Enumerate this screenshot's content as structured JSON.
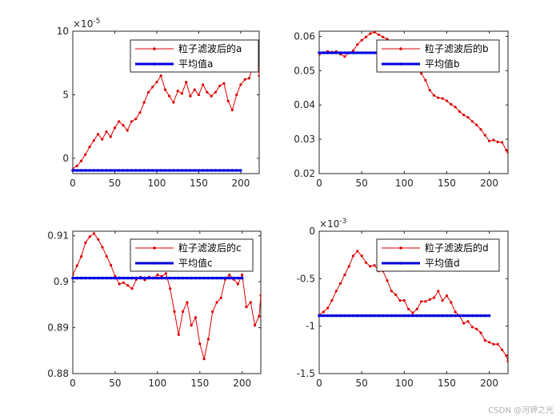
{
  "watermark": "CSDN @河钾之光",
  "colors": {
    "filtered": "#dd0000",
    "mean": "#0000e0",
    "axis": "#262626"
  },
  "chart_data": [
    {
      "type": "line",
      "panel": "a",
      "xlim": [
        0,
        222
      ],
      "ylim": [
        -1.2e-05,
        0.0001
      ],
      "x_ticks": [
        0,
        50,
        100,
        150,
        200
      ],
      "y_ticks": [
        0,
        5e-05,
        0.0001
      ],
      "y_tick_labels": [
        "0",
        "5",
        "10"
      ],
      "exponent_base": "×10",
      "exponent": "-5",
      "legend": [
        "粒子滤波后的a",
        "平均值a"
      ],
      "series": [
        {
          "name": "粒子滤波后的a",
          "x": [
            0,
            5,
            10,
            15,
            20,
            25,
            30,
            35,
            40,
            45,
            50,
            55,
            60,
            65,
            70,
            75,
            80,
            85,
            90,
            95,
            100,
            105,
            110,
            115,
            120,
            125,
            130,
            135,
            140,
            145,
            150,
            155,
            160,
            165,
            170,
            175,
            180,
            185,
            190,
            195,
            200,
            205,
            210,
            215,
            220,
            222
          ],
          "y": [
            -8e-06,
            -6e-06,
            -2e-06,
            3e-06,
            9e-06,
            1.4e-05,
            1.9e-05,
            1.5e-05,
            2.1e-05,
            1.7e-05,
            2.4e-05,
            2.9e-05,
            2.6e-05,
            2.2e-05,
            2.9e-05,
            3.1e-05,
            3.6e-05,
            4.4e-05,
            5.2e-05,
            5.6e-05,
            6e-05,
            6.5e-05,
            5.4e-05,
            4.9e-05,
            4.4e-05,
            5.3e-05,
            5.1e-05,
            6e-05,
            4.9e-05,
            5.4e-05,
            5e-05,
            5.8e-05,
            5.2e-05,
            4.9e-05,
            5.2e-05,
            5.7e-05,
            5.9e-05,
            4.5e-05,
            3.8e-05,
            5e-05,
            5.8e-05,
            6.2e-05,
            6.3e-05,
            7.3e-05,
            8.5e-05,
            6.5e-05
          ]
        },
        {
          "name": "平均值a",
          "x": [
            0,
            200
          ],
          "y": [
            -9.5e-06,
            -9.5e-06
          ]
        }
      ]
    },
    {
      "type": "line",
      "panel": "b",
      "xlim": [
        0,
        222
      ],
      "ylim": [
        0.02,
        0.0615
      ],
      "x_ticks": [
        0,
        50,
        100,
        150,
        200
      ],
      "y_ticks": [
        0.02,
        0.03,
        0.04,
        0.05,
        0.06
      ],
      "y_tick_labels": [
        "0.02",
        "0.03",
        "0.04",
        "0.05",
        "0.06"
      ],
      "legend": [
        "粒子滤波后的b",
        "平均值b"
      ],
      "series": [
        {
          "name": "粒子滤波后的b",
          "x": [
            0,
            5,
            10,
            15,
            20,
            25,
            30,
            35,
            40,
            45,
            50,
            55,
            60,
            65,
            70,
            75,
            80,
            85,
            90,
            95,
            100,
            105,
            110,
            115,
            120,
            125,
            130,
            135,
            140,
            145,
            150,
            155,
            160,
            165,
            170,
            175,
            180,
            185,
            190,
            195,
            200,
            205,
            210,
            215,
            220,
            222
          ],
          "y": [
            0.0547,
            0.0553,
            0.0556,
            0.0554,
            0.0556,
            0.0548,
            0.0541,
            0.0552,
            0.0558,
            0.0576,
            0.0589,
            0.0598,
            0.0608,
            0.0612,
            0.0605,
            0.0598,
            0.0592,
            0.0585,
            0.0578,
            0.0572,
            0.0562,
            0.0548,
            0.0531,
            0.0513,
            0.0492,
            0.0472,
            0.0443,
            0.0428,
            0.0421,
            0.0419,
            0.0412,
            0.0402,
            0.0394,
            0.0381,
            0.0371,
            0.0364,
            0.0352,
            0.0342,
            0.0329,
            0.0312,
            0.0295,
            0.0298,
            0.0292,
            0.0291,
            0.0268,
            0.0262
          ]
        },
        {
          "name": "平均值b",
          "x": [
            0,
            200
          ],
          "y": [
            0.0552,
            0.0552
          ]
        }
      ]
    },
    {
      "type": "line",
      "panel": "c",
      "xlim": [
        0,
        222
      ],
      "ylim": [
        0.88,
        0.911
      ],
      "x_ticks": [
        0,
        50,
        100,
        150,
        200
      ],
      "y_ticks": [
        0.88,
        0.89,
        0.9,
        0.91
      ],
      "y_tick_labels": [
        "0.88",
        "0.89",
        "0.9",
        "0.91"
      ],
      "legend": [
        "粒子滤波后的c",
        "平均值c"
      ],
      "series": [
        {
          "name": "粒子滤波后的c",
          "x": [
            0,
            5,
            10,
            15,
            20,
            25,
            30,
            35,
            40,
            45,
            50,
            55,
            60,
            65,
            70,
            75,
            80,
            85,
            90,
            95,
            100,
            105,
            110,
            115,
            120,
            125,
            130,
            135,
            140,
            145,
            150,
            155,
            160,
            165,
            170,
            175,
            180,
            185,
            190,
            195,
            200,
            205,
            210,
            215,
            220,
            222
          ],
          "y": [
            0.9015,
            0.9035,
            0.9055,
            0.9085,
            0.9098,
            0.9105,
            0.9092,
            0.9075,
            0.9055,
            0.9036,
            0.9012,
            0.8995,
            0.8998,
            0.8992,
            0.8985,
            0.9005,
            0.901,
            0.9004,
            0.901,
            0.9008,
            0.9015,
            0.9012,
            0.9018,
            0.8985,
            0.8935,
            0.8885,
            0.8935,
            0.8955,
            0.8905,
            0.8922,
            0.8865,
            0.8832,
            0.8875,
            0.8935,
            0.8955,
            0.8965,
            0.9005,
            0.9015,
            0.9005,
            0.8995,
            0.9015,
            0.8945,
            0.8955,
            0.8905,
            0.8925,
            0.897
          ]
        },
        {
          "name": "平均值c",
          "x": [
            0,
            200
          ],
          "y": [
            0.9008,
            0.9008
          ]
        }
      ]
    },
    {
      "type": "line",
      "panel": "d",
      "xlim": [
        0,
        222
      ],
      "ylim": [
        -0.0015,
        0
      ],
      "x_ticks": [
        0,
        50,
        100,
        150,
        200
      ],
      "y_ticks": [
        0,
        -0.0005,
        -0.001,
        -0.0015
      ],
      "y_tick_labels": [
        "0",
        "-0.5",
        "-1",
        "-1.5"
      ],
      "exponent_base": "×10",
      "exponent": "-3",
      "legend": [
        "粒子滤波后的d",
        "平均值d"
      ],
      "series": [
        {
          "name": "粒子滤波后的d",
          "x": [
            0,
            5,
            10,
            15,
            20,
            25,
            30,
            35,
            40,
            45,
            50,
            55,
            60,
            65,
            70,
            75,
            80,
            85,
            90,
            95,
            100,
            105,
            110,
            115,
            120,
            125,
            130,
            135,
            140,
            145,
            150,
            155,
            160,
            165,
            170,
            175,
            180,
            185,
            190,
            195,
            200,
            205,
            210,
            215,
            220,
            222
          ],
          "y": [
            -0.00088,
            -0.00085,
            -0.00081,
            -0.00073,
            -0.00063,
            -0.00055,
            -0.00046,
            -0.00037,
            -0.00026,
            -0.00021,
            -0.00026,
            -0.00033,
            -0.00037,
            -0.00036,
            -0.00042,
            -0.00042,
            -0.00052,
            -0.00063,
            -0.00067,
            -0.00073,
            -0.00073,
            -0.00082,
            -0.00086,
            -0.00082,
            -0.00074,
            -0.00074,
            -0.00072,
            -0.0007,
            -0.00063,
            -0.00073,
            -0.00068,
            -0.00075,
            -0.00085,
            -0.00089,
            -0.00097,
            -0.00095,
            -0.00101,
            -0.00103,
            -0.00107,
            -0.00115,
            -0.00117,
            -0.00119,
            -0.00119,
            -0.00125,
            -0.00131,
            -0.00137
          ]
        },
        {
          "name": "平均值d",
          "x": [
            0,
            200
          ],
          "y": [
            -0.00089,
            -0.00089
          ]
        }
      ]
    }
  ]
}
